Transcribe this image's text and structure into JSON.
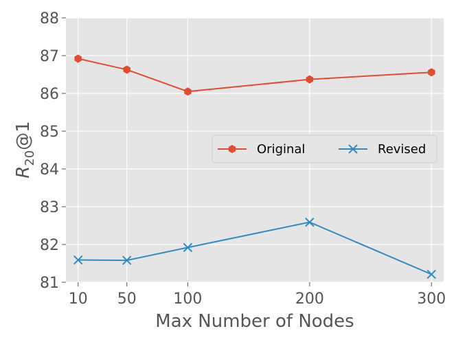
{
  "chart_data": {
    "type": "line",
    "xlabel": "Max Number of Nodes",
    "ylabel": {
      "base": "R",
      "sub": "20",
      "suffix": "@1"
    },
    "x": [
      "10",
      "50",
      "100",
      "200",
      "300"
    ],
    "x_values": [
      10,
      50,
      100,
      200,
      300
    ],
    "ylim": [
      81,
      88
    ],
    "yticks": [
      81,
      82,
      83,
      84,
      85,
      86,
      87,
      88
    ],
    "grid": true,
    "legend_position": "center-right",
    "series": [
      {
        "name": "Original",
        "values": [
          86.92,
          86.63,
          86.05,
          86.37,
          86.56
        ],
        "color": "#e24a33",
        "marker": "hexagon"
      },
      {
        "name": "Revised",
        "values": [
          81.59,
          81.58,
          81.92,
          82.59,
          81.21
        ],
        "color": "#348abd",
        "marker": "x"
      }
    ],
    "background_color": "#e5e5e5",
    "grid_color": "#ffffff"
  }
}
